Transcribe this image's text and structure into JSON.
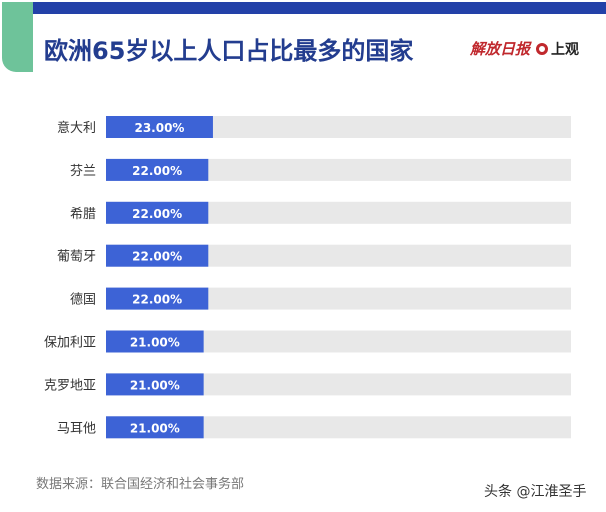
{
  "logo": {
    "paper": "解放日报",
    "brand": "上观"
  },
  "chart_data": {
    "type": "bar",
    "orientation": "horizontal",
    "title": "欧洲65岁以上人口占比最多的国家",
    "categories": [
      "意大利",
      "芬兰",
      "希腊",
      "葡萄牙",
      "德国",
      "保加利亚",
      "克罗地亚",
      "马耳他"
    ],
    "values": [
      23,
      22,
      22,
      22,
      22,
      21,
      21,
      21
    ],
    "labels": [
      "23.00%",
      "22.00%",
      "22.00%",
      "22.00%",
      "22.00%",
      "21.00%",
      "21.00%",
      "21.00%"
    ],
    "xlim": [
      0,
      100
    ],
    "unit": "%",
    "colors": {
      "bar": "#3d63d6",
      "track": "#e8e8e8"
    },
    "source": "数据来源：联合国经济和社会事务部"
  },
  "watermark": "头条 @江淮圣手"
}
